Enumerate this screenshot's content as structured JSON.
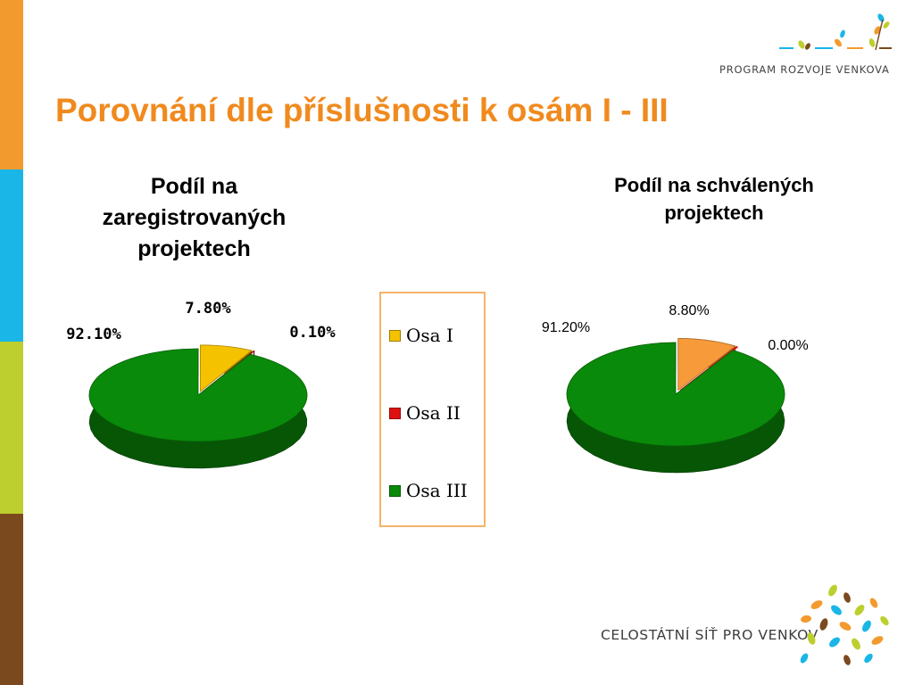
{
  "title": "Porovnání dle příslušnosti k osám I - III",
  "logos": {
    "top": "PROGRAM ROZVOJE VENKOVA",
    "bottom": "CELOSTÁTNÍ SÍŤ PRO VENKOV"
  },
  "colors": {
    "accent": "#f08a1e",
    "sidebar": [
      "#f39a2e",
      "#19b6e7",
      "#bccf2e",
      "#7a4a1e"
    ],
    "legend_border": "#f6b36b"
  },
  "legend": {
    "items": [
      {
        "label": "Osa I",
        "color": "#f5c200"
      },
      {
        "label": "Osa II",
        "color": "#e01010"
      },
      {
        "label": "Osa III",
        "color": "#0a8a0a"
      }
    ]
  },
  "chart_data": [
    {
      "type": "pie",
      "title": "Podíl na zaregistrovaných projektech",
      "title_lines": [
        "Podíl na",
        "zaregistrovaných",
        "projektech"
      ],
      "categories": [
        "Osa I",
        "Osa II",
        "Osa III"
      ],
      "values": [
        7.8,
        0.1,
        92.1
      ],
      "labels": [
        "7.80%",
        "0.10%",
        "92.10%"
      ],
      "colors": [
        "#f5c200",
        "#e01010",
        "#0a8a0a"
      ]
    },
    {
      "type": "pie",
      "title": "Podíl na schválených projektech",
      "title_lines": [
        "Podíl na schválených",
        "projektech"
      ],
      "categories": [
        "Osa I",
        "Osa II",
        "Osa III"
      ],
      "values": [
        8.8,
        0.0,
        91.2
      ],
      "labels": [
        "8.80%",
        "0.00%",
        "91.20%"
      ],
      "colors": [
        "#f79a3a",
        "#e01010",
        "#0a8a0a"
      ]
    }
  ]
}
